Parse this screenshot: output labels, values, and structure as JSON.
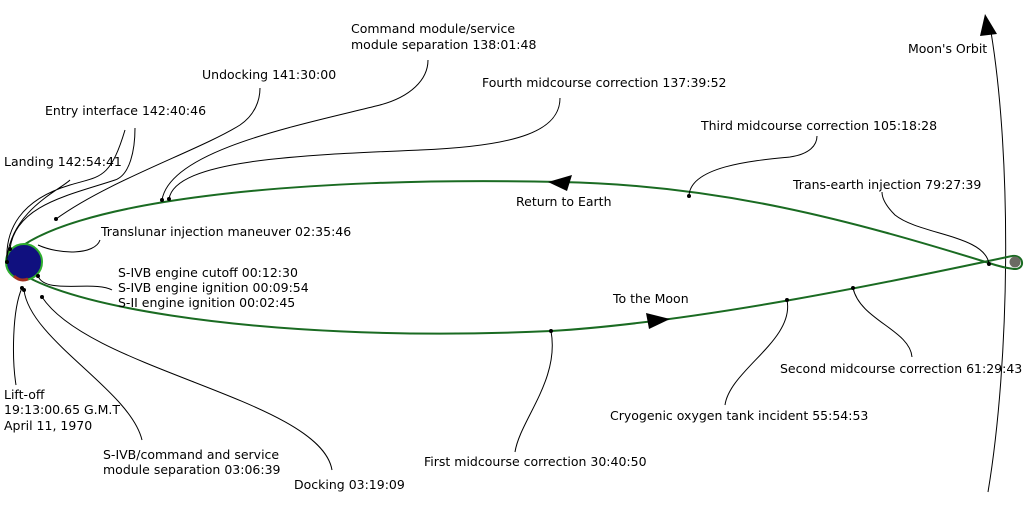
{
  "colors": {
    "trajectory": "#1a6b22",
    "earth": "#10107f",
    "moon": "#6b6b63"
  },
  "labels": {
    "moons_orbit": "Moon's Orbit",
    "cm_sm_sep_1": "Command module/service",
    "cm_sm_sep_2": "module separation 138:01:48",
    "undocking": "Undocking 141:30:00",
    "fourth_mcc": "Fourth midcourse correction 137:39:52",
    "entry": "Entry interface 142:40:46",
    "third_mcc": "Third midcourse correction 105:18:28",
    "landing": "Landing 142:54:41",
    "tei": "Trans-earth injection 79:27:39",
    "return": "Return to Earth",
    "tli": "Translunar injection maneuver 02:35:46",
    "sivb_cutoff": "S-IVB engine cutoff 00:12:30",
    "sivb_ign": "S-IVB engine ignition 00:09:54",
    "sii_ign": "S-II engine ignition 00:02:45",
    "to_moon": "To the Moon",
    "second_mcc": "Second midcourse correction 61:29:43",
    "liftoff_1": "Lift-off",
    "liftoff_2": "19:13:00.65 G.M.T",
    "liftoff_3": "April 11, 1970",
    "cryo": "Cryogenic oxygen tank incident 55:54:53",
    "sivb_sep_1": "S-IVB/command and service",
    "sivb_sep_2": "module separation 03:06:39",
    "first_mcc": "First midcourse correction 30:40:50",
    "docking": "Docking 03:19:09"
  }
}
